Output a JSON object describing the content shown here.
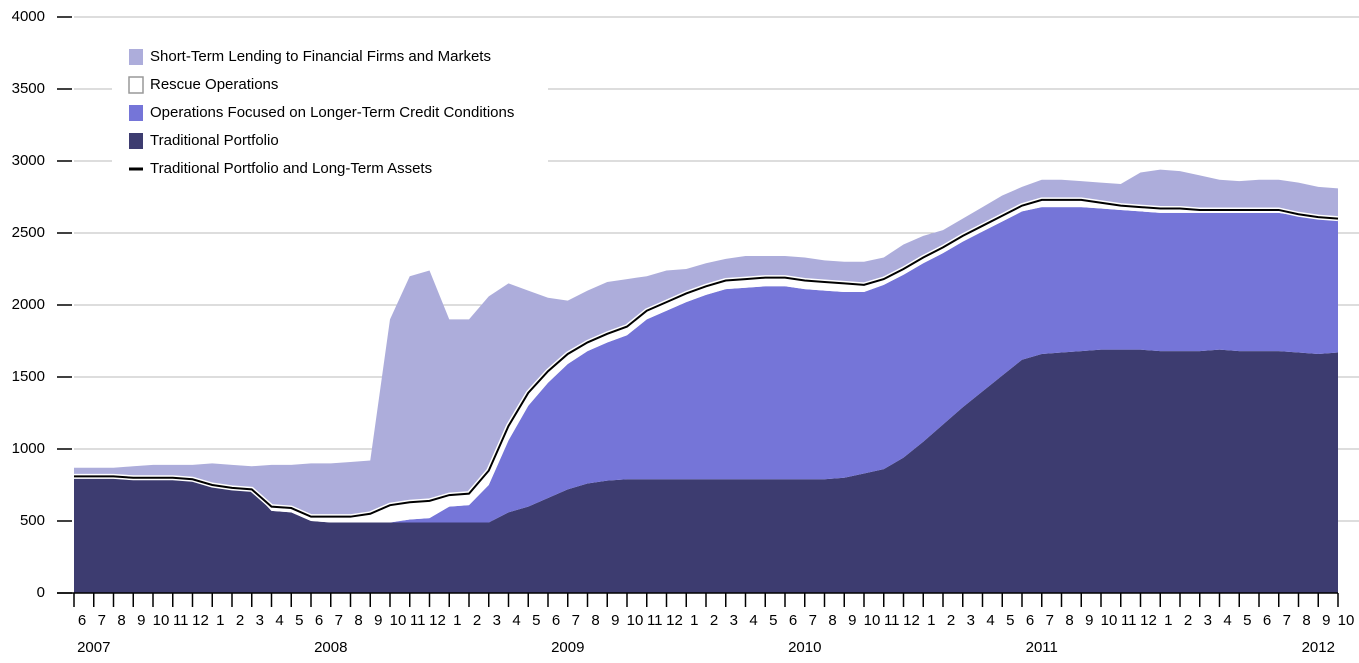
{
  "chart_data": {
    "type": "stacked-area",
    "x": [
      "2007-06",
      "2007-07",
      "2007-08",
      "2007-09",
      "2007-10",
      "2007-11",
      "2007-12",
      "2008-01",
      "2008-02",
      "2008-03",
      "2008-04",
      "2008-05",
      "2008-06",
      "2008-07",
      "2008-08",
      "2008-09",
      "2008-10",
      "2008-11",
      "2008-12",
      "2009-01",
      "2009-02",
      "2009-03",
      "2009-04",
      "2009-05",
      "2009-06",
      "2009-07",
      "2009-08",
      "2009-09",
      "2009-10",
      "2009-11",
      "2009-12",
      "2010-01",
      "2010-02",
      "2010-03",
      "2010-04",
      "2010-05",
      "2010-06",
      "2010-07",
      "2010-08",
      "2010-09",
      "2010-10",
      "2010-11",
      "2010-12",
      "2011-01",
      "2011-02",
      "2011-03",
      "2011-04",
      "2011-05",
      "2011-06",
      "2011-07",
      "2011-08",
      "2011-09",
      "2011-10",
      "2011-11",
      "2011-12",
      "2012-01",
      "2012-02",
      "2012-03",
      "2012-04",
      "2012-05",
      "2012-06",
      "2012-07",
      "2012-08",
      "2012-09",
      "2012-10"
    ],
    "series": [
      {
        "name": "Traditional Portfolio",
        "color": "#3d3c70",
        "values": [
          810,
          810,
          810,
          800,
          800,
          800,
          790,
          750,
          730,
          720,
          570,
          560,
          500,
          490,
          490,
          490,
          490,
          490,
          490,
          490,
          490,
          490,
          560,
          600,
          660,
          720,
          760,
          780,
          790,
          790,
          790,
          790,
          790,
          790,
          790,
          790,
          790,
          790,
          790,
          800,
          830,
          860,
          940,
          1050,
          1170,
          1290,
          1400,
          1510,
          1620,
          1660,
          1670,
          1680,
          1690,
          1690,
          1690,
          1680,
          1680,
          1680,
          1690,
          1680,
          1680,
          1680,
          1670,
          1660,
          1670
        ]
      },
      {
        "name": "Operations Focused on Longer-Term Credit Conditions",
        "color": "#7575d8",
        "values": [
          0,
          0,
          0,
          0,
          0,
          0,
          0,
          0,
          0,
          0,
          0,
          0,
          0,
          0,
          0,
          0,
          0,
          20,
          30,
          110,
          120,
          260,
          500,
          700,
          800,
          870,
          920,
          960,
          1000,
          1110,
          1170,
          1230,
          1280,
          1320,
          1330,
          1340,
          1340,
          1320,
          1310,
          1290,
          1260,
          1280,
          1270,
          1240,
          1190,
          1150,
          1110,
          1070,
          1030,
          1020,
          1010,
          1000,
          980,
          970,
          960,
          960,
          960,
          960,
          950,
          960,
          960,
          960,
          950,
          940,
          920
        ]
      },
      {
        "name": "Rescue Operations",
        "color": "#ffffff",
        "values": [
          0,
          0,
          0,
          0,
          0,
          0,
          0,
          0,
          0,
          0,
          30,
          30,
          30,
          40,
          40,
          60,
          120,
          120,
          120,
          80,
          80,
          100,
          100,
          90,
          80,
          70,
          60,
          60,
          60,
          60,
          60,
          60,
          60,
          60,
          60,
          60,
          60,
          60,
          60,
          60,
          50,
          40,
          40,
          40,
          40,
          40,
          40,
          40,
          40,
          50,
          50,
          50,
          40,
          30,
          30,
          30,
          30,
          20,
          20,
          20,
          20,
          20,
          10,
          10,
          10
        ]
      },
      {
        "name": "Short-Term Lending to Financial Firms and Markets",
        "color": "#adaddb",
        "values": [
          60,
          60,
          60,
          80,
          90,
          90,
          100,
          150,
          160,
          160,
          290,
          300,
          370,
          370,
          380,
          370,
          1290,
          1570,
          1600,
          1220,
          1210,
          1210,
          990,
          710,
          510,
          370,
          360,
          360,
          330,
          240,
          220,
          170,
          160,
          150,
          160,
          150,
          150,
          160,
          150,
          150,
          160,
          150,
          170,
          150,
          120,
          120,
          130,
          140,
          130,
          140,
          140,
          130,
          140,
          150,
          240,
          270,
          260,
          240,
          210,
          200,
          210,
          210,
          220,
          210,
          210
        ]
      }
    ],
    "line": {
      "name": "Traditional Portfolio and Long-Term Assets",
      "color": "#000000",
      "values": [
        810,
        810,
        810,
        800,
        800,
        800,
        790,
        750,
        730,
        720,
        600,
        590,
        530,
        530,
        530,
        550,
        610,
        630,
        640,
        680,
        690,
        850,
        1160,
        1390,
        1540,
        1660,
        1740,
        1800,
        1850,
        1960,
        2020,
        2080,
        2130,
        2170,
        2180,
        2190,
        2190,
        2170,
        2160,
        2150,
        2140,
        2180,
        2250,
        2330,
        2400,
        2480,
        2550,
        2620,
        2690,
        2730,
        2730,
        2730,
        2710,
        2690,
        2680,
        2670,
        2670,
        2660,
        2660,
        2660,
        2660,
        2660,
        2630,
        2610,
        2600
      ]
    },
    "legend_order": [
      3,
      2,
      1,
      0
    ],
    "ylim": [
      0,
      4000
    ],
    "yticks": [
      0,
      500,
      1000,
      1500,
      2000,
      2500,
      3000,
      3500,
      4000
    ],
    "grid": true,
    "xticks": [
      {
        "value": "2007-06",
        "label": "6"
      },
      {
        "value": "2007-07",
        "label": "7"
      },
      {
        "value": "2007-08",
        "label": "8"
      },
      {
        "value": "2007-09",
        "label": "9"
      },
      {
        "value": "2007-10",
        "label": "10"
      },
      {
        "value": "2007-11",
        "label": "11"
      },
      {
        "value": "2007-12",
        "label": "12"
      },
      {
        "value": "2008-01",
        "label": "1"
      },
      {
        "value": "2008-02",
        "label": "2"
      },
      {
        "value": "2008-03",
        "label": "3"
      },
      {
        "value": "2008-04",
        "label": "4"
      },
      {
        "value": "2008-05",
        "label": "5"
      },
      {
        "value": "2008-06",
        "label": "6"
      },
      {
        "value": "2008-07",
        "label": "7"
      },
      {
        "value": "2008-08",
        "label": "8"
      },
      {
        "value": "2008-09",
        "label": "9"
      },
      {
        "value": "2008-10",
        "label": "10"
      },
      {
        "value": "2008-11",
        "label": "11"
      },
      {
        "value": "2008-12",
        "label": "12"
      },
      {
        "value": "2009-01",
        "label": "1"
      },
      {
        "value": "2009-02",
        "label": "2"
      },
      {
        "value": "2009-03",
        "label": "3"
      },
      {
        "value": "2009-04",
        "label": "4"
      },
      {
        "value": "2009-05",
        "label": "5"
      },
      {
        "value": "2009-06",
        "label": "6"
      },
      {
        "value": "2009-07",
        "label": "7"
      },
      {
        "value": "2009-08",
        "label": "8"
      },
      {
        "value": "2009-09",
        "label": "9"
      },
      {
        "value": "2009-10",
        "label": "10"
      },
      {
        "value": "2009-11",
        "label": "11"
      },
      {
        "value": "2009-12",
        "label": "12"
      },
      {
        "value": "2010-01",
        "label": "1"
      },
      {
        "value": "2010-02",
        "label": "2"
      },
      {
        "value": "2010-03",
        "label": "3"
      },
      {
        "value": "2010-04",
        "label": "4"
      },
      {
        "value": "2010-05",
        "label": "5"
      },
      {
        "value": "2010-06",
        "label": "6"
      },
      {
        "value": "2010-07",
        "label": "7"
      },
      {
        "value": "2010-08",
        "label": "8"
      },
      {
        "value": "2010-09",
        "label": "9"
      },
      {
        "value": "2010-10",
        "label": "10"
      },
      {
        "value": "2010-11",
        "label": "11"
      },
      {
        "value": "2010-12",
        "label": "12"
      },
      {
        "value": "2011-01",
        "label": "1"
      },
      {
        "value": "2011-02",
        "label": "2"
      },
      {
        "value": "2011-03",
        "label": "3"
      },
      {
        "value": "2011-04",
        "label": "4"
      },
      {
        "value": "2011-05",
        "label": "5"
      },
      {
        "value": "2011-06",
        "label": "6"
      },
      {
        "value": "2011-07",
        "label": "7"
      },
      {
        "value": "2011-08",
        "label": "8"
      },
      {
        "value": "2011-09",
        "label": "9"
      },
      {
        "value": "2011-10",
        "label": "10"
      },
      {
        "value": "2011-11",
        "label": "11"
      },
      {
        "value": "2011-12",
        "label": "12"
      },
      {
        "value": "2012-01",
        "label": "1"
      },
      {
        "value": "2012-02",
        "label": "2"
      },
      {
        "value": "2012-03",
        "label": "3"
      },
      {
        "value": "2012-04",
        "label": "4"
      },
      {
        "value": "2012-05",
        "label": "5"
      },
      {
        "value": "2012-06",
        "label": "6"
      },
      {
        "value": "2012-07",
        "label": "7"
      },
      {
        "value": "2012-08",
        "label": "8"
      },
      {
        "value": "2012-09",
        "label": "9"
      },
      {
        "value": "2012-10",
        "label": "10"
      }
    ],
    "year_ticks": [
      {
        "value": "2007-07",
        "label": "2007"
      },
      {
        "value": "2008-07",
        "label": "2008"
      },
      {
        "value": "2009-07",
        "label": "2009"
      },
      {
        "value": "2010-07",
        "label": "2010"
      },
      {
        "value": "2011-07",
        "label": "2011"
      },
      {
        "value": "2012-09",
        "label": "2012"
      }
    ]
  }
}
